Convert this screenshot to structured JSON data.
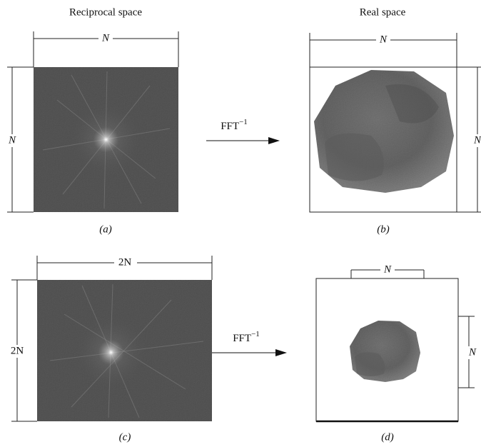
{
  "headers": {
    "reciprocal": "Reciprocal space",
    "real": "Real space"
  },
  "panels": {
    "a": {
      "label": "(a)",
      "width": "N",
      "height": "N"
    },
    "b": {
      "label": "(b)",
      "width": "N",
      "height": "N"
    },
    "c": {
      "label": "(c)",
      "width": "2N",
      "height": "2N"
    },
    "d": {
      "label": "(d)",
      "width": "N",
      "height": "N"
    }
  },
  "arrows": [
    {
      "label": "FFT",
      "exponent": "−1"
    },
    {
      "label": "FFT",
      "exponent": "−1"
    }
  ]
}
